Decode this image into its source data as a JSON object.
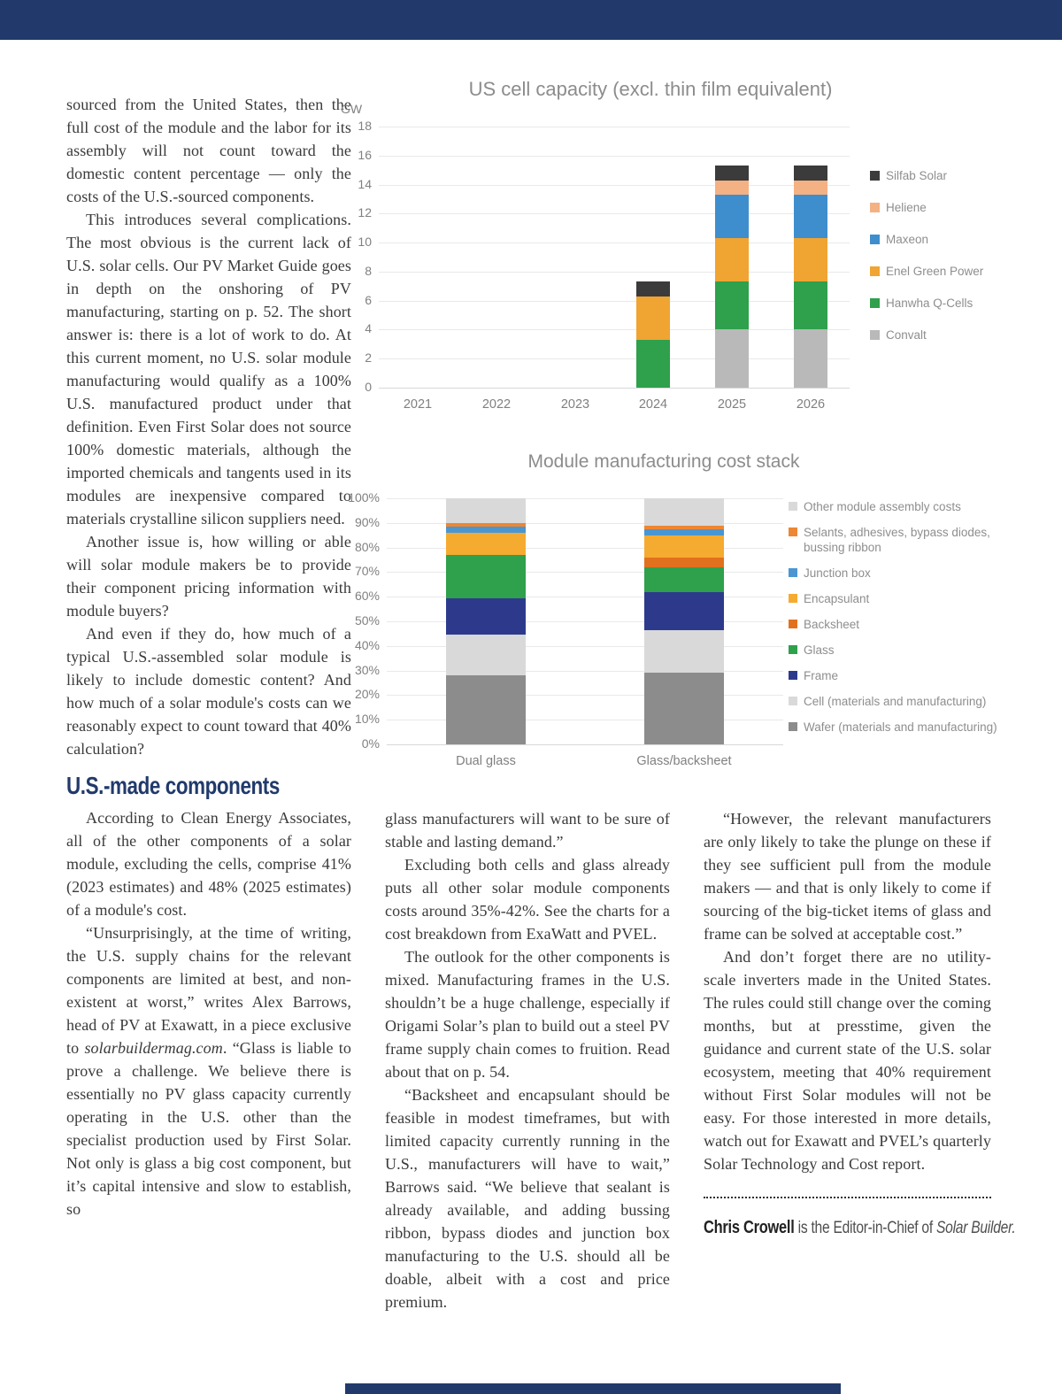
{
  "page": {
    "top_bar_color": "#213a6b",
    "bottom_bar_color": "#213a6b"
  },
  "article": {
    "left_column": {
      "p1": "sourced from the United States, then the full cost of the module and the labor for its assembly will not count toward the domestic content percentage — only the costs of the U.S.-sourced components.",
      "p2": "This introduces several complications. The most obvious is the current lack of U.S. solar cells. Our PV Market Guide goes in depth on the onshoring of PV manufacturing, starting on p. 52. The short answer is: there is a lot of work to do. At this current moment, no U.S. solar module manufacturing would qualify as a 100% U.S. manufactured product under that definition. Even First Solar does not source 100% domestic materials, although the imported chemicals and tangents used in its modules are inexpensive compared to materials crystalline silicon suppliers need.",
      "p3": "Another issue is, how willing or able will solar module makers be to provide their component pricing information with module buyers?",
      "p4": "And even if they do, how much of a typical U.S.-assembled solar module is likely to include domestic content? And how much of a solar module's costs can we reasonably expect to count toward that 40% calculation?",
      "heading": "U.S.-made components",
      "p5": "According to Clean Energy Associates, all of the other components of a solar module, excluding the cells, comprise 41% (2023 estimates) and 48% (2025 estimates) of a module's cost.",
      "p6_pre": "“Unsurprisingly, at the time of writing, the U.S. supply chains for the relevant components are limited at best, and non-existent at worst,” writes Alex Barrows, head of PV at Exawatt, in a piece exclusive to ",
      "p6_italic": "solarbuildermag.com",
      "p6_post": ". “Glass is liable to prove a challenge. We believe there is essentially no PV glass capacity currently operating in the U.S. other than the specialist production used by First Solar. Not only is glass a big cost component, but it’s capital intensive and slow to establish, so"
    },
    "middle_column": {
      "p1": "glass manufacturers will want to be sure of stable and lasting demand.”",
      "p2": "Excluding both cells and glass already puts all other solar module components costs around 35%-42%. See the charts for a cost breakdown from ExaWatt and PVEL.",
      "p3": "The outlook for the other components is mixed. Manufacturing frames in the U.S. shouldn’t be a huge challenge, especially if Origami Solar’s plan to build out a steel PV frame supply chain comes to fruition. Read about that on p. 54.",
      "p4": "“Backsheet and encapsulant should be feasible in modest timeframes, but with limited capacity currently running in the U.S., manufacturers will have to wait,” Barrows said. “We believe that sealant is already available, and adding bussing ribbon, bypass diodes and junction box manufacturing to the U.S. should all be doable, albeit with a cost and price premium."
    },
    "right_column": {
      "p1": "“However, the relevant manufacturers are only likely to take the plunge on these if they see sufficient pull from the module makers — and that is only likely to come if sourcing of the big-ticket items of glass and frame can be solved at acceptable cost.”",
      "p2": "And don’t forget there are no utility-scale inverters made in the United States. The rules could still change over the coming months, but at presstime, given the guidance and current state of the U.S. solar ecosystem, meeting that 40% requirement without First Solar modules will not be easy. For those interested in more details, watch out for Exawatt and PVEL’s quarterly Solar Technology and Cost report.",
      "byline_name": "Chris Crowell",
      "byline_text": " is the Editor-in-Chief of ",
      "byline_publication": "Solar Builder."
    }
  },
  "chart_data": [
    {
      "type": "bar",
      "stacked": true,
      "title": "US cell capacity (excl. thin film equivalent)",
      "unit_label": "GW",
      "xlabel": "",
      "ylabel": "GW",
      "ylim": [
        0,
        18
      ],
      "ytick_step": 2,
      "ytick_suffix": "",
      "grid": true,
      "legend_position": "right",
      "categories": [
        "2021",
        "2022",
        "2023",
        "2024",
        "2025",
        "2026"
      ],
      "series": [
        {
          "name": "Convalt",
          "color": "#b9b9b9",
          "values": [
            0,
            0,
            0,
            0,
            4,
            4
          ]
        },
        {
          "name": "Hanwha Q-Cells",
          "color": "#2fa04c",
          "values": [
            0,
            0,
            0,
            3.3,
            3.3,
            3.3
          ]
        },
        {
          "name": "Enel Green Power",
          "color": "#f0a432",
          "values": [
            0,
            0,
            0,
            3,
            3,
            3
          ]
        },
        {
          "name": "Maxeon",
          "color": "#3e8ecd",
          "values": [
            0,
            0,
            0,
            0,
            3,
            3
          ]
        },
        {
          "name": "Heliene",
          "color": "#f4b183",
          "values": [
            0,
            0,
            0,
            0,
            1,
            1
          ]
        },
        {
          "name": "Silfab Solar",
          "color": "#3b3b3b",
          "values": [
            0,
            0,
            0,
            1,
            1,
            1
          ]
        }
      ]
    },
    {
      "type": "bar",
      "stacked": true,
      "title": "Module manufacturing cost stack",
      "unit_label": "",
      "xlabel": "",
      "ylabel": "%",
      "ylim": [
        0,
        100
      ],
      "ytick_step": 10,
      "ytick_suffix": "%",
      "grid": true,
      "legend_position": "right",
      "categories": [
        "Dual glass",
        "Glass/backsheet"
      ],
      "series": [
        {
          "name": "Wafer (materials and manufacturing)",
          "color": "#8c8c8c",
          "values": [
            28,
            29
          ]
        },
        {
          "name": "Cell (materials and manufacturing)",
          "color": "#d9d9d9",
          "values": [
            16.5,
            17.5
          ]
        },
        {
          "name": "Frame",
          "color": "#2d3a8c",
          "values": [
            15,
            15.5
          ]
        },
        {
          "name": "Glass",
          "color": "#2fa04c",
          "values": [
            17.5,
            10
          ]
        },
        {
          "name": "Backsheet",
          "color": "#e2711d",
          "values": [
            0,
            4
          ]
        },
        {
          "name": "Encapsulant",
          "color": "#f5ab30",
          "values": [
            9,
            9
          ]
        },
        {
          "name": "Junction box",
          "color": "#4a96d2",
          "values": [
            2.5,
            2.5
          ]
        },
        {
          "name": "Selants, adhesives, bypass diodes, bussing ribbon",
          "color": "#ed8733",
          "values": [
            1.5,
            1.5
          ]
        },
        {
          "name": "Other module assembly costs",
          "color": "#d9d9d9",
          "values": [
            10,
            11
          ]
        }
      ]
    }
  ]
}
